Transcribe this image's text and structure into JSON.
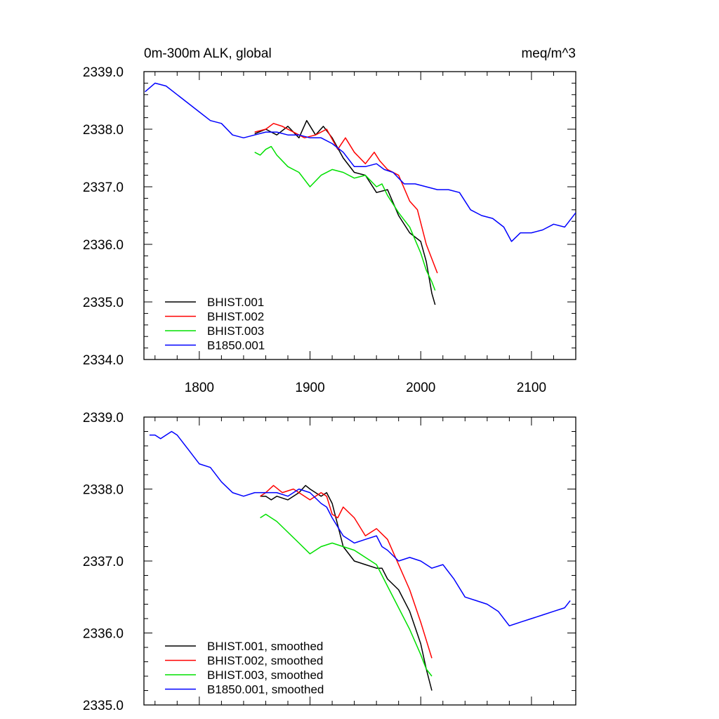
{
  "chart_data": [
    {
      "type": "line",
      "title": "0m-300m ALK, global",
      "units": "meq/m^3",
      "xlabel": "",
      "ylabel": "",
      "xlim": [
        1750,
        2140
      ],
      "ylim": [
        2334.0,
        2339.0
      ],
      "xticks": [
        1800,
        1900,
        2000,
        2100
      ],
      "yticks": [
        2334.0,
        2335.0,
        2336.0,
        2337.0,
        2338.0,
        2339.0
      ],
      "legend_position": "bottom-left",
      "grid": false,
      "series": [
        {
          "name": "BHIST.001",
          "color": "#000000",
          "x": [
            1850,
            1860,
            1870,
            1880,
            1890,
            1897,
            1905,
            1912,
            1920,
            1930,
            1940,
            1950,
            1960,
            1970,
            1980,
            1990,
            2000,
            2005,
            2010,
            2013
          ],
          "y": [
            2337.92,
            2338.0,
            2337.9,
            2338.05,
            2337.85,
            2338.15,
            2337.9,
            2338.05,
            2337.85,
            2337.5,
            2337.25,
            2337.2,
            2336.9,
            2336.95,
            2336.5,
            2336.2,
            2336.05,
            2335.7,
            2335.15,
            2334.95
          ]
        },
        {
          "name": "BHIST.002",
          "color": "#ff0000",
          "x": [
            1850,
            1860,
            1867,
            1875,
            1885,
            1895,
            1905,
            1915,
            1925,
            1932,
            1940,
            1950,
            1958,
            1963,
            1970,
            1980,
            1990,
            1997,
            2005,
            2010,
            2015
          ],
          "y": [
            2337.95,
            2338.0,
            2338.1,
            2338.05,
            2337.95,
            2337.85,
            2337.9,
            2338.0,
            2337.65,
            2337.85,
            2337.6,
            2337.4,
            2337.6,
            2337.45,
            2337.3,
            2337.2,
            2336.75,
            2336.6,
            2336.0,
            2335.75,
            2335.5
          ]
        },
        {
          "name": "BHIST.003",
          "color": "#00e000",
          "x": [
            1850,
            1855,
            1860,
            1865,
            1870,
            1880,
            1890,
            1900,
            1910,
            1920,
            1930,
            1940,
            1950,
            1960,
            1965,
            1970,
            1980,
            1990,
            2000,
            2005,
            2010,
            2013
          ],
          "y": [
            2337.6,
            2337.55,
            2337.65,
            2337.7,
            2337.55,
            2337.35,
            2337.25,
            2337.0,
            2337.2,
            2337.3,
            2337.25,
            2337.15,
            2337.2,
            2337.0,
            2337.05,
            2336.85,
            2336.55,
            2336.3,
            2335.85,
            2335.55,
            2335.35,
            2335.2
          ]
        },
        {
          "name": "B1850.001",
          "color": "#0000ff",
          "x": [
            1751,
            1760,
            1770,
            1780,
            1790,
            1800,
            1810,
            1820,
            1830,
            1840,
            1850,
            1860,
            1870,
            1880,
            1890,
            1900,
            1910,
            1920,
            1930,
            1940,
            1950,
            1960,
            1967,
            1975,
            1985,
            1995,
            2005,
            2015,
            2025,
            2035,
            2045,
            2055,
            2065,
            2075,
            2082,
            2090,
            2100,
            2110,
            2120,
            2130,
            2140
          ],
          "y": [
            2338.65,
            2338.8,
            2338.75,
            2338.6,
            2338.45,
            2338.3,
            2338.15,
            2338.1,
            2337.9,
            2337.85,
            2337.9,
            2337.95,
            2337.95,
            2337.9,
            2337.9,
            2337.85,
            2337.85,
            2337.75,
            2337.6,
            2337.35,
            2337.35,
            2337.4,
            2337.3,
            2337.25,
            2337.05,
            2337.05,
            2337.0,
            2336.95,
            2336.95,
            2336.9,
            2336.6,
            2336.5,
            2336.45,
            2336.3,
            2336.05,
            2336.2,
            2336.2,
            2336.25,
            2336.35,
            2336.3,
            2336.55
          ]
        }
      ]
    },
    {
      "type": "line",
      "title": "",
      "xlabel": "",
      "ylabel": "",
      "xlim": [
        1750,
        2140
      ],
      "ylim": [
        2335.0,
        2339.0
      ],
      "xticks": [
        1800,
        1900,
        2000,
        2100
      ],
      "yticks": [
        2335.0,
        2336.0,
        2337.0,
        2338.0,
        2339.0
      ],
      "legend_position": "bottom-left",
      "grid": false,
      "series": [
        {
          "name": "BHIST.001, smoothed",
          "color": "#000000",
          "x": [
            1855,
            1860,
            1865,
            1870,
            1880,
            1890,
            1896,
            1900,
            1910,
            1915,
            1920,
            1925,
            1930,
            1940,
            1950,
            1960,
            1965,
            1970,
            1980,
            1990,
            2000,
            2005,
            2010
          ],
          "y": [
            2337.9,
            2337.9,
            2337.85,
            2337.9,
            2337.85,
            2337.95,
            2338.05,
            2338.0,
            2337.9,
            2337.95,
            2337.8,
            2337.5,
            2337.2,
            2337.0,
            2336.95,
            2336.9,
            2336.9,
            2336.75,
            2336.6,
            2336.3,
            2335.85,
            2335.5,
            2335.2
          ]
        },
        {
          "name": "BHIST.002, smoothed",
          "color": "#ff0000",
          "x": [
            1855,
            1860,
            1867,
            1875,
            1885,
            1890,
            1900,
            1910,
            1915,
            1920,
            1925,
            1930,
            1940,
            1950,
            1960,
            1970,
            1980,
            1990,
            2000,
            2005,
            2010
          ],
          "y": [
            2337.9,
            2337.95,
            2338.05,
            2337.95,
            2338.0,
            2337.95,
            2337.85,
            2337.95,
            2337.9,
            2337.65,
            2337.6,
            2337.75,
            2337.6,
            2337.35,
            2337.45,
            2337.3,
            2336.95,
            2336.6,
            2336.15,
            2335.9,
            2335.65
          ]
        },
        {
          "name": "BHIST.003, smoothed",
          "color": "#00e000",
          "x": [
            1855,
            1860,
            1865,
            1870,
            1880,
            1890,
            1900,
            1910,
            1920,
            1930,
            1940,
            1950,
            1960,
            1970,
            1980,
            1990,
            2000,
            2005,
            2010
          ],
          "y": [
            2337.6,
            2337.65,
            2337.6,
            2337.55,
            2337.4,
            2337.25,
            2337.1,
            2337.2,
            2337.25,
            2337.2,
            2337.15,
            2337.05,
            2336.95,
            2336.65,
            2336.35,
            2336.05,
            2335.7,
            2335.5,
            2335.4
          ]
        },
        {
          "name": "B1850.001, smoothed",
          "color": "#0000ff",
          "x": [
            1755,
            1760,
            1765,
            1770,
            1775,
            1780,
            1790,
            1800,
            1810,
            1820,
            1830,
            1840,
            1850,
            1860,
            1870,
            1880,
            1890,
            1900,
            1910,
            1915,
            1920,
            1930,
            1940,
            1950,
            1960,
            1965,
            1970,
            1980,
            1990,
            2000,
            2010,
            2020,
            2030,
            2040,
            2050,
            2060,
            2070,
            2080,
            2090,
            2100,
            2110,
            2120,
            2130,
            2135
          ],
          "y": [
            2338.75,
            2338.75,
            2338.7,
            2338.75,
            2338.8,
            2338.75,
            2338.55,
            2338.35,
            2338.3,
            2338.1,
            2337.95,
            2337.9,
            2337.95,
            2337.95,
            2337.95,
            2337.9,
            2338.0,
            2337.95,
            2337.8,
            2337.75,
            2337.6,
            2337.35,
            2337.25,
            2337.3,
            2337.35,
            2337.2,
            2337.15,
            2337.0,
            2337.05,
            2337.0,
            2336.9,
            2336.95,
            2336.75,
            2336.5,
            2336.45,
            2336.4,
            2336.3,
            2336.1,
            2336.15,
            2336.2,
            2336.25,
            2336.3,
            2336.35,
            2336.45
          ]
        }
      ]
    }
  ]
}
